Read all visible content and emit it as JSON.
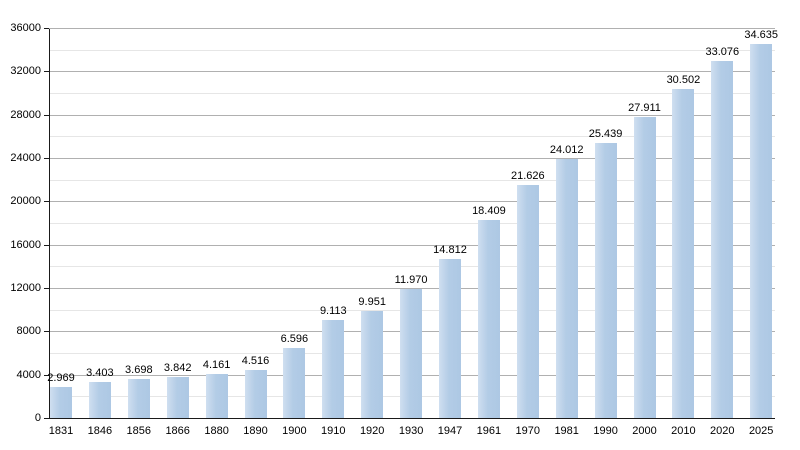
{
  "chart_data": {
    "type": "bar",
    "title": "",
    "xlabel": "",
    "ylabel": "",
    "categories": [
      "1831",
      "1846",
      "1856",
      "1866",
      "1880",
      "1890",
      "1900",
      "1910",
      "1920",
      "1930",
      "1947",
      "1961",
      "1970",
      "1981",
      "1990",
      "2000",
      "2010",
      "2020",
      "2025"
    ],
    "values": [
      2969,
      3403,
      3698,
      3842,
      4161,
      4516,
      6596,
      9113,
      9951,
      11970,
      14812,
      18409,
      21626,
      24012,
      25439,
      27911,
      30502,
      33076,
      34635
    ],
    "value_labels": [
      "2.969",
      "3.403",
      "3.698",
      "3.842",
      "4.161",
      "4.516",
      "6.596",
      "9.113",
      "9.951",
      "11.970",
      "14.812",
      "18.409",
      "21.626",
      "24.012",
      "25.439",
      "27.911",
      "30.502",
      "33.076",
      "34.635"
    ],
    "ylim": [
      0,
      36000
    ],
    "y_major_step": 4000,
    "y_minor_step": 2000,
    "y_tick_labels": [
      "0",
      "4000",
      "8000",
      "12000",
      "16000",
      "20000",
      "24000",
      "28000",
      "32000",
      "36000"
    ],
    "grid": "horizontal major+minor",
    "legend": null,
    "colors": {
      "bar_light": "#cfdff0",
      "bar_main": "#b3cce6",
      "bar_edge": "#adc8e4",
      "grid_major": "#b0b0b0",
      "grid_minor": "#e6e6e6",
      "axis": "#1a1a1a",
      "text": "#000000",
      "background": "#ffffff"
    }
  }
}
